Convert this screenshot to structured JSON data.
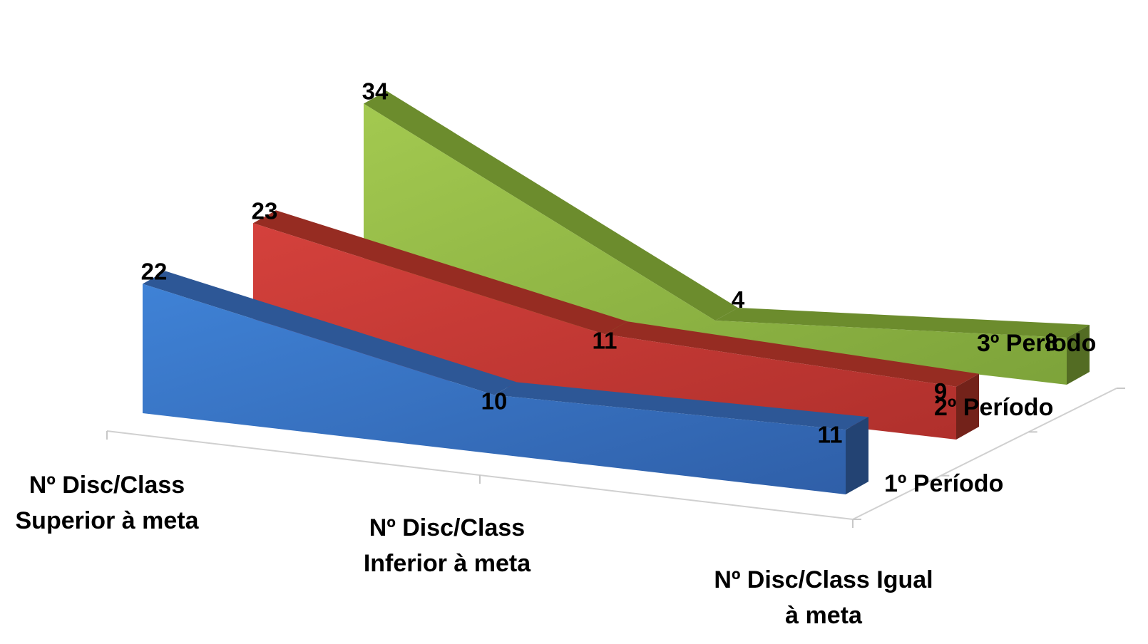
{
  "chart_data": {
    "type": "area",
    "subtype": "3d-area",
    "categories": [
      "Nº Disc/Class Superior à meta",
      "Nº Disc/Class Inferior à meta",
      "Nº Disc/Class Igual à meta"
    ],
    "category_lines": [
      [
        "Nº Disc/Class",
        "Superior à meta"
      ],
      [
        "Nº Disc/Class",
        "Inferior à meta"
      ],
      [
        "Nº Disc/Class Igual",
        "à meta"
      ]
    ],
    "series": [
      {
        "name": "1º Período",
        "values": [
          22,
          10,
          11
        ],
        "color": "#3a6fc0"
      },
      {
        "name": "2º Período",
        "values": [
          23,
          11,
          9
        ],
        "color": "#c0392b"
      },
      {
        "name": "3º Período",
        "values": [
          34,
          4,
          8
        ],
        "color": "#8ab43a"
      }
    ],
    "data_labels": true,
    "grid": false,
    "legend": "none"
  }
}
